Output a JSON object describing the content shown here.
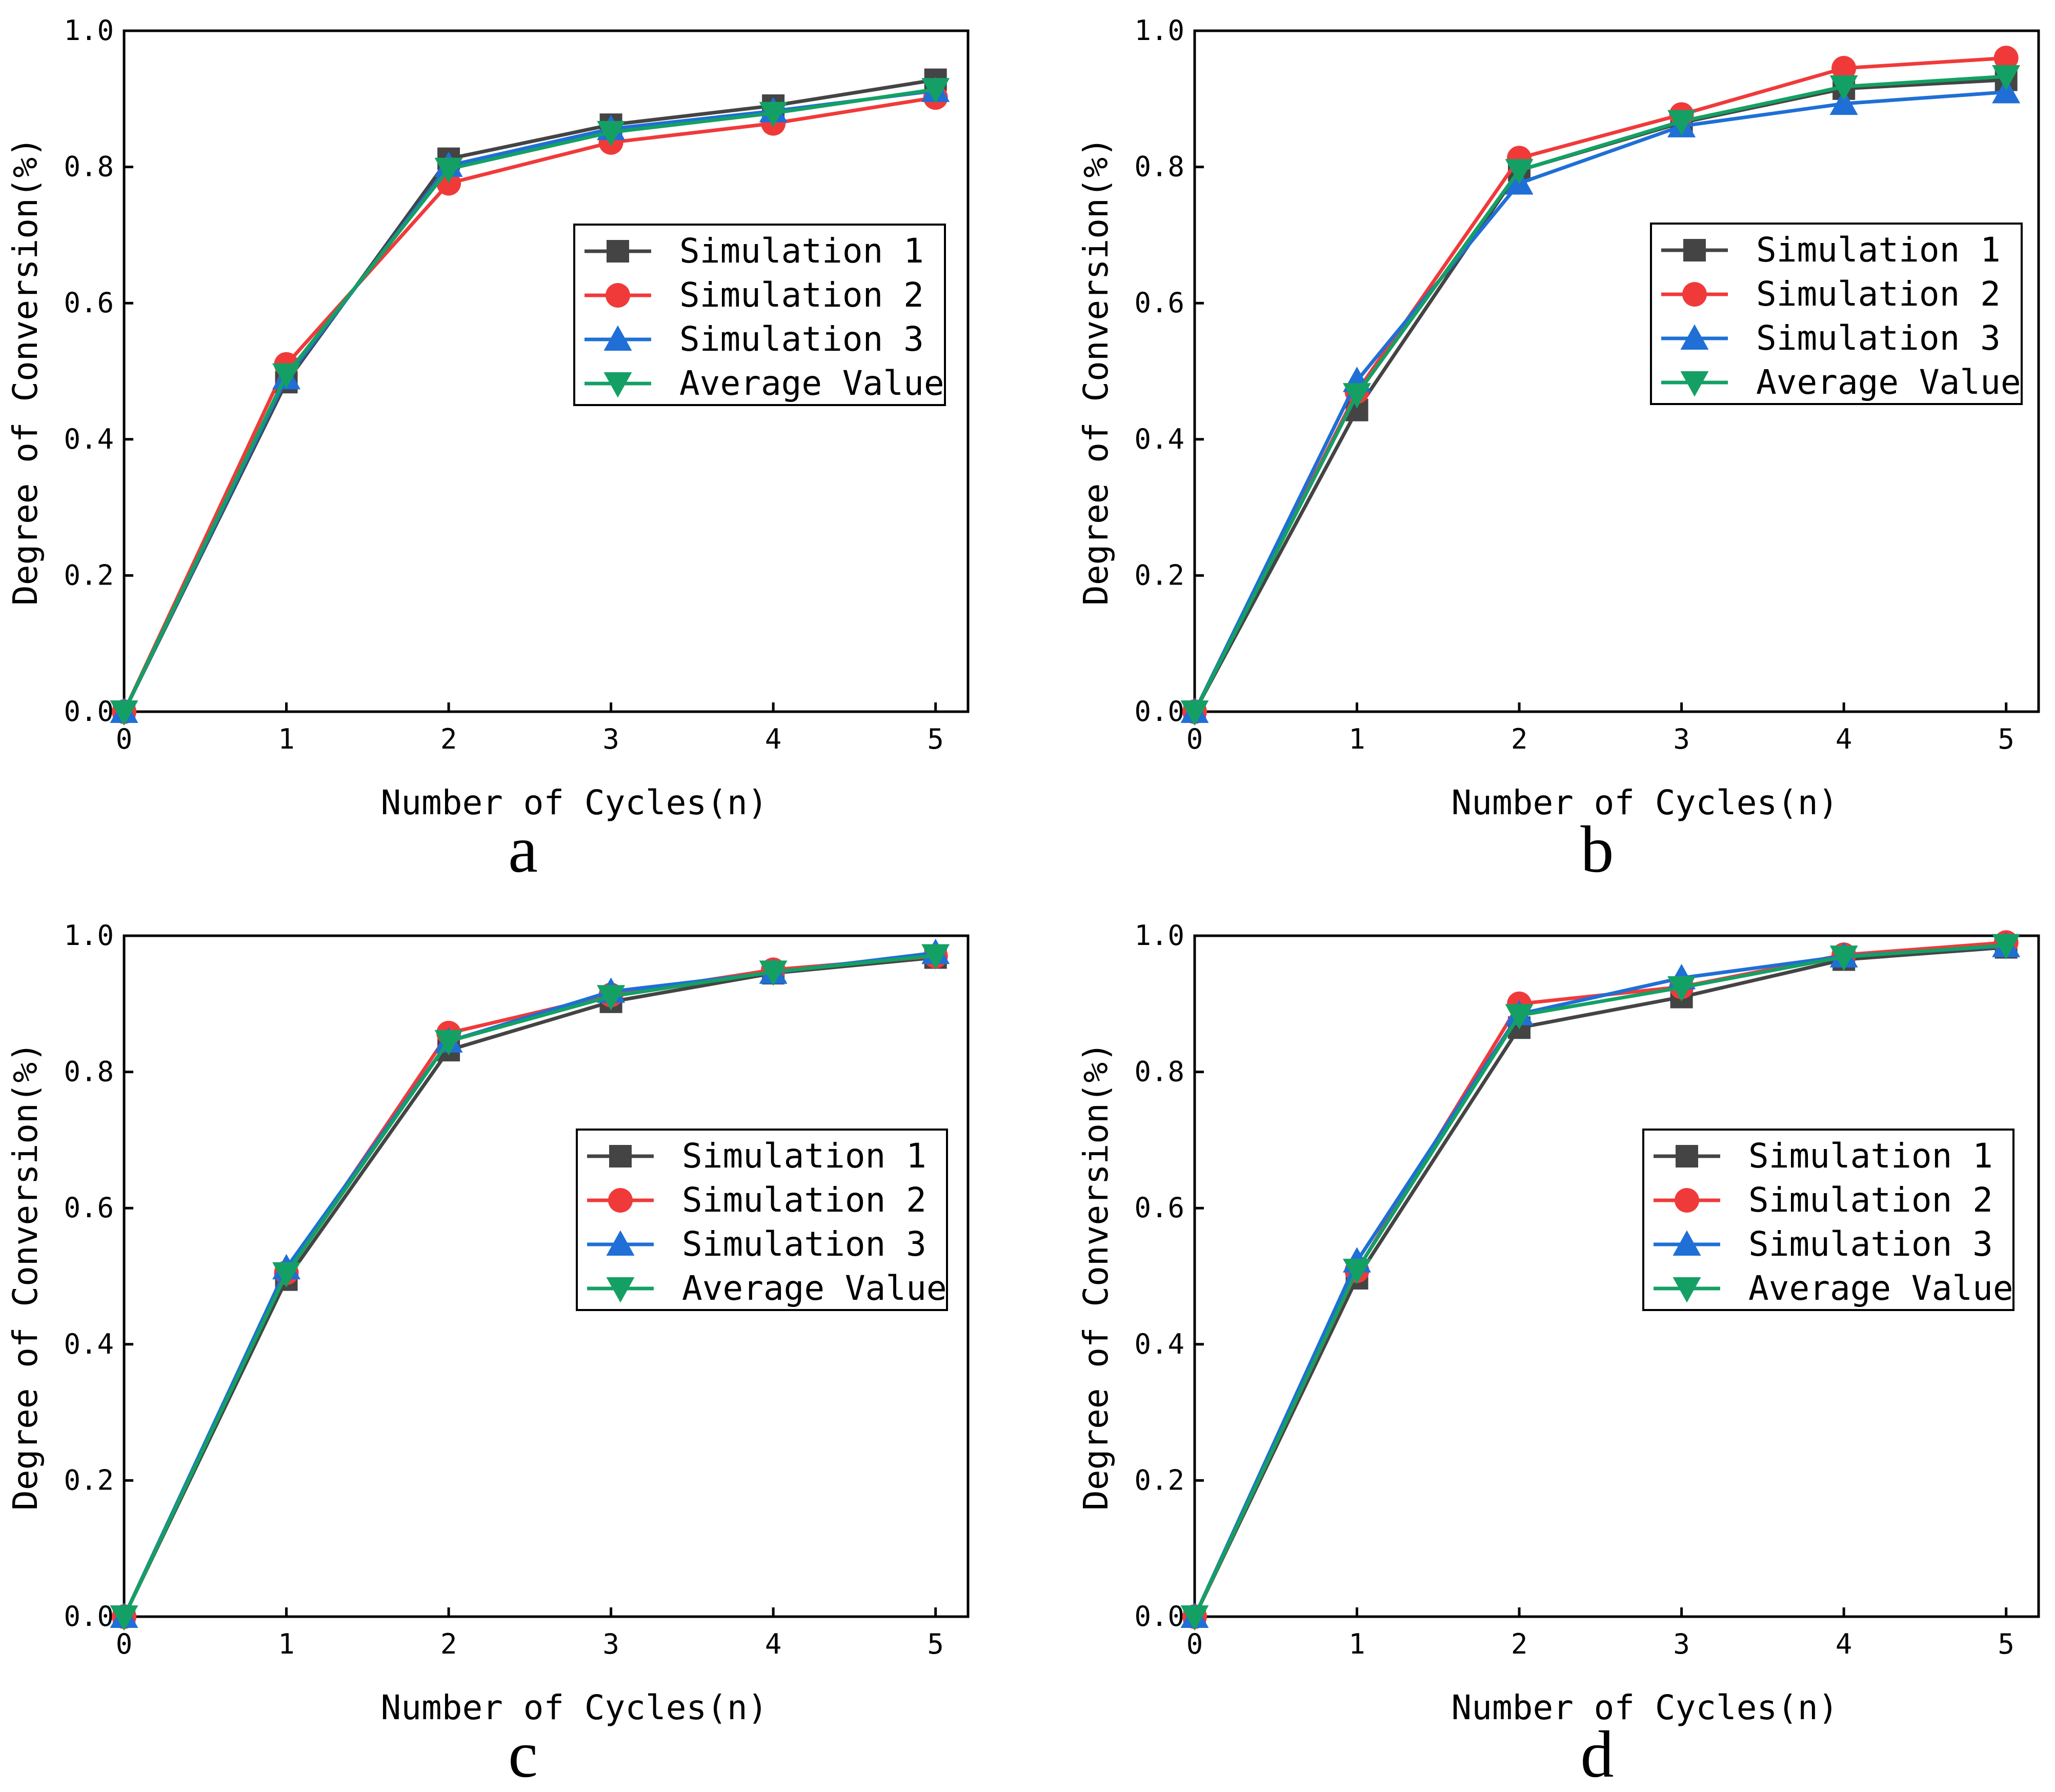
{
  "chart_data": [
    {
      "panel_label": "a",
      "type": "line",
      "xlabel": "Number of Cycles(n)",
      "ylabel": "Degree of Conversion(%)",
      "xlim": [
        0,
        5.2
      ],
      "ylim": [
        0,
        1.0
      ],
      "xticks": [
        0,
        1,
        2,
        3,
        4,
        5
      ],
      "xtick_labels": [
        "0",
        "1",
        "2",
        "3",
        "4",
        "5"
      ],
      "yticks": [
        0,
        0.2,
        0.4,
        0.6,
        0.8,
        1.0
      ],
      "ytick_labels": [
        "0.0",
        "0.2",
        "0.4",
        "0.6",
        "0.8",
        "1.0"
      ],
      "legend_position": "center-right",
      "x": [
        0,
        1,
        2,
        3,
        4,
        5
      ],
      "series": [
        {
          "name": "Simulation 1",
          "color": "#444444",
          "marker": "square",
          "values": [
            0,
            0.484,
            0.812,
            0.862,
            0.89,
            0.928
          ]
        },
        {
          "name": "Simulation 2",
          "color": "#f03a3a",
          "marker": "circle",
          "values": [
            0,
            0.51,
            0.776,
            0.836,
            0.864,
            0.902
          ]
        },
        {
          "name": "Simulation 3",
          "color": "#1f6fd6",
          "marker": "triangle-up",
          "values": [
            0,
            0.49,
            0.802,
            0.856,
            0.882,
            0.912
          ]
        },
        {
          "name": "Average Value",
          "color": "#14a064",
          "marker": "triangle-down",
          "values": [
            0,
            0.495,
            0.797,
            0.851,
            0.879,
            0.914
          ]
        }
      ]
    },
    {
      "panel_label": "b",
      "type": "line",
      "xlabel": "Number of Cycles(n)",
      "ylabel": "Degree of Conversion(%)",
      "xlim": [
        0,
        5.2
      ],
      "ylim": [
        0,
        1.0
      ],
      "xticks": [
        0,
        1,
        2,
        3,
        4,
        5
      ],
      "xtick_labels": [
        "0",
        "1",
        "2",
        "3",
        "4",
        "5"
      ],
      "yticks": [
        0,
        0.2,
        0.4,
        0.6,
        0.8,
        1.0
      ],
      "ytick_labels": [
        "0.0",
        "0.2",
        "0.4",
        "0.6",
        "0.8",
        "1.0"
      ],
      "legend_position": "center-right",
      "x": [
        0,
        1,
        2,
        3,
        4,
        5
      ],
      "series": [
        {
          "name": "Simulation 1",
          "color": "#444444",
          "marker": "square",
          "values": [
            0,
            0.443,
            0.795,
            0.865,
            0.915,
            0.928
          ]
        },
        {
          "name": "Simulation 2",
          "color": "#f03a3a",
          "marker": "circle",
          "values": [
            0,
            0.47,
            0.813,
            0.877,
            0.945,
            0.96
          ]
        },
        {
          "name": "Simulation 3",
          "color": "#1f6fd6",
          "marker": "triangle-up",
          "values": [
            0,
            0.486,
            0.776,
            0.86,
            0.893,
            0.91
          ]
        },
        {
          "name": "Average Value",
          "color": "#14a064",
          "marker": "triangle-down",
          "values": [
            0,
            0.466,
            0.795,
            0.867,
            0.918,
            0.933
          ]
        }
      ]
    },
    {
      "panel_label": "c",
      "type": "line",
      "xlabel": "Number of Cycles(n)",
      "ylabel": "Degree of Conversion(%)",
      "xlim": [
        0,
        5.2
      ],
      "ylim": [
        0,
        1.0
      ],
      "xticks": [
        0,
        1,
        2,
        3,
        4,
        5
      ],
      "xtick_labels": [
        "0",
        "1",
        "2",
        "3",
        "4",
        "5"
      ],
      "yticks": [
        0,
        0.2,
        0.4,
        0.6,
        0.8,
        1.0
      ],
      "ytick_labels": [
        "0.0",
        "0.2",
        "0.4",
        "0.6",
        "0.8",
        "1.0"
      ],
      "legend_position": "center-right",
      "x": [
        0,
        1,
        2,
        3,
        4,
        5
      ],
      "series": [
        {
          "name": "Simulation 1",
          "color": "#444444",
          "marker": "square",
          "values": [
            0,
            0.495,
            0.832,
            0.903,
            0.945,
            0.968
          ]
        },
        {
          "name": "Simulation 2",
          "color": "#f03a3a",
          "marker": "circle",
          "values": [
            0,
            0.505,
            0.857,
            0.913,
            0.95,
            0.97
          ]
        },
        {
          "name": "Simulation 3",
          "color": "#1f6fd6",
          "marker": "triangle-up",
          "values": [
            0,
            0.512,
            0.845,
            0.918,
            0.946,
            0.975
          ]
        },
        {
          "name": "Average Value",
          "color": "#14a064",
          "marker": "triangle-down",
          "values": [
            0,
            0.504,
            0.845,
            0.911,
            0.947,
            0.971
          ]
        }
      ]
    },
    {
      "panel_label": "d",
      "type": "line",
      "xlabel": "Number of Cycles(n)",
      "ylabel": "Degree of Conversion(%)",
      "xlim": [
        0,
        5.2
      ],
      "ylim": [
        0,
        1.0
      ],
      "xticks": [
        0,
        1,
        2,
        3,
        4,
        5
      ],
      "xtick_labels": [
        "0",
        "1",
        "2",
        "3",
        "4",
        "5"
      ],
      "yticks": [
        0,
        0.2,
        0.4,
        0.6,
        0.8,
        1.0
      ],
      "ytick_labels": [
        "0.0",
        "0.2",
        "0.4",
        "0.6",
        "0.8",
        "1.0"
      ],
      "legend_position": "center-right",
      "x": [
        0,
        1,
        2,
        3,
        4,
        5
      ],
      "series": [
        {
          "name": "Simulation 1",
          "color": "#444444",
          "marker": "square",
          "values": [
            0,
            0.497,
            0.865,
            0.91,
            0.965,
            0.983
          ]
        },
        {
          "name": "Simulation 2",
          "color": "#f03a3a",
          "marker": "circle",
          "values": [
            0,
            0.508,
            0.9,
            0.925,
            0.972,
            0.99
          ]
        },
        {
          "name": "Simulation 3",
          "color": "#1f6fd6",
          "marker": "triangle-up",
          "values": [
            0,
            0.522,
            0.885,
            0.938,
            0.97,
            0.985
          ]
        },
        {
          "name": "Average Value",
          "color": "#14a064",
          "marker": "triangle-down",
          "values": [
            0,
            0.509,
            0.883,
            0.924,
            0.969,
            0.986
          ]
        }
      ]
    }
  ]
}
